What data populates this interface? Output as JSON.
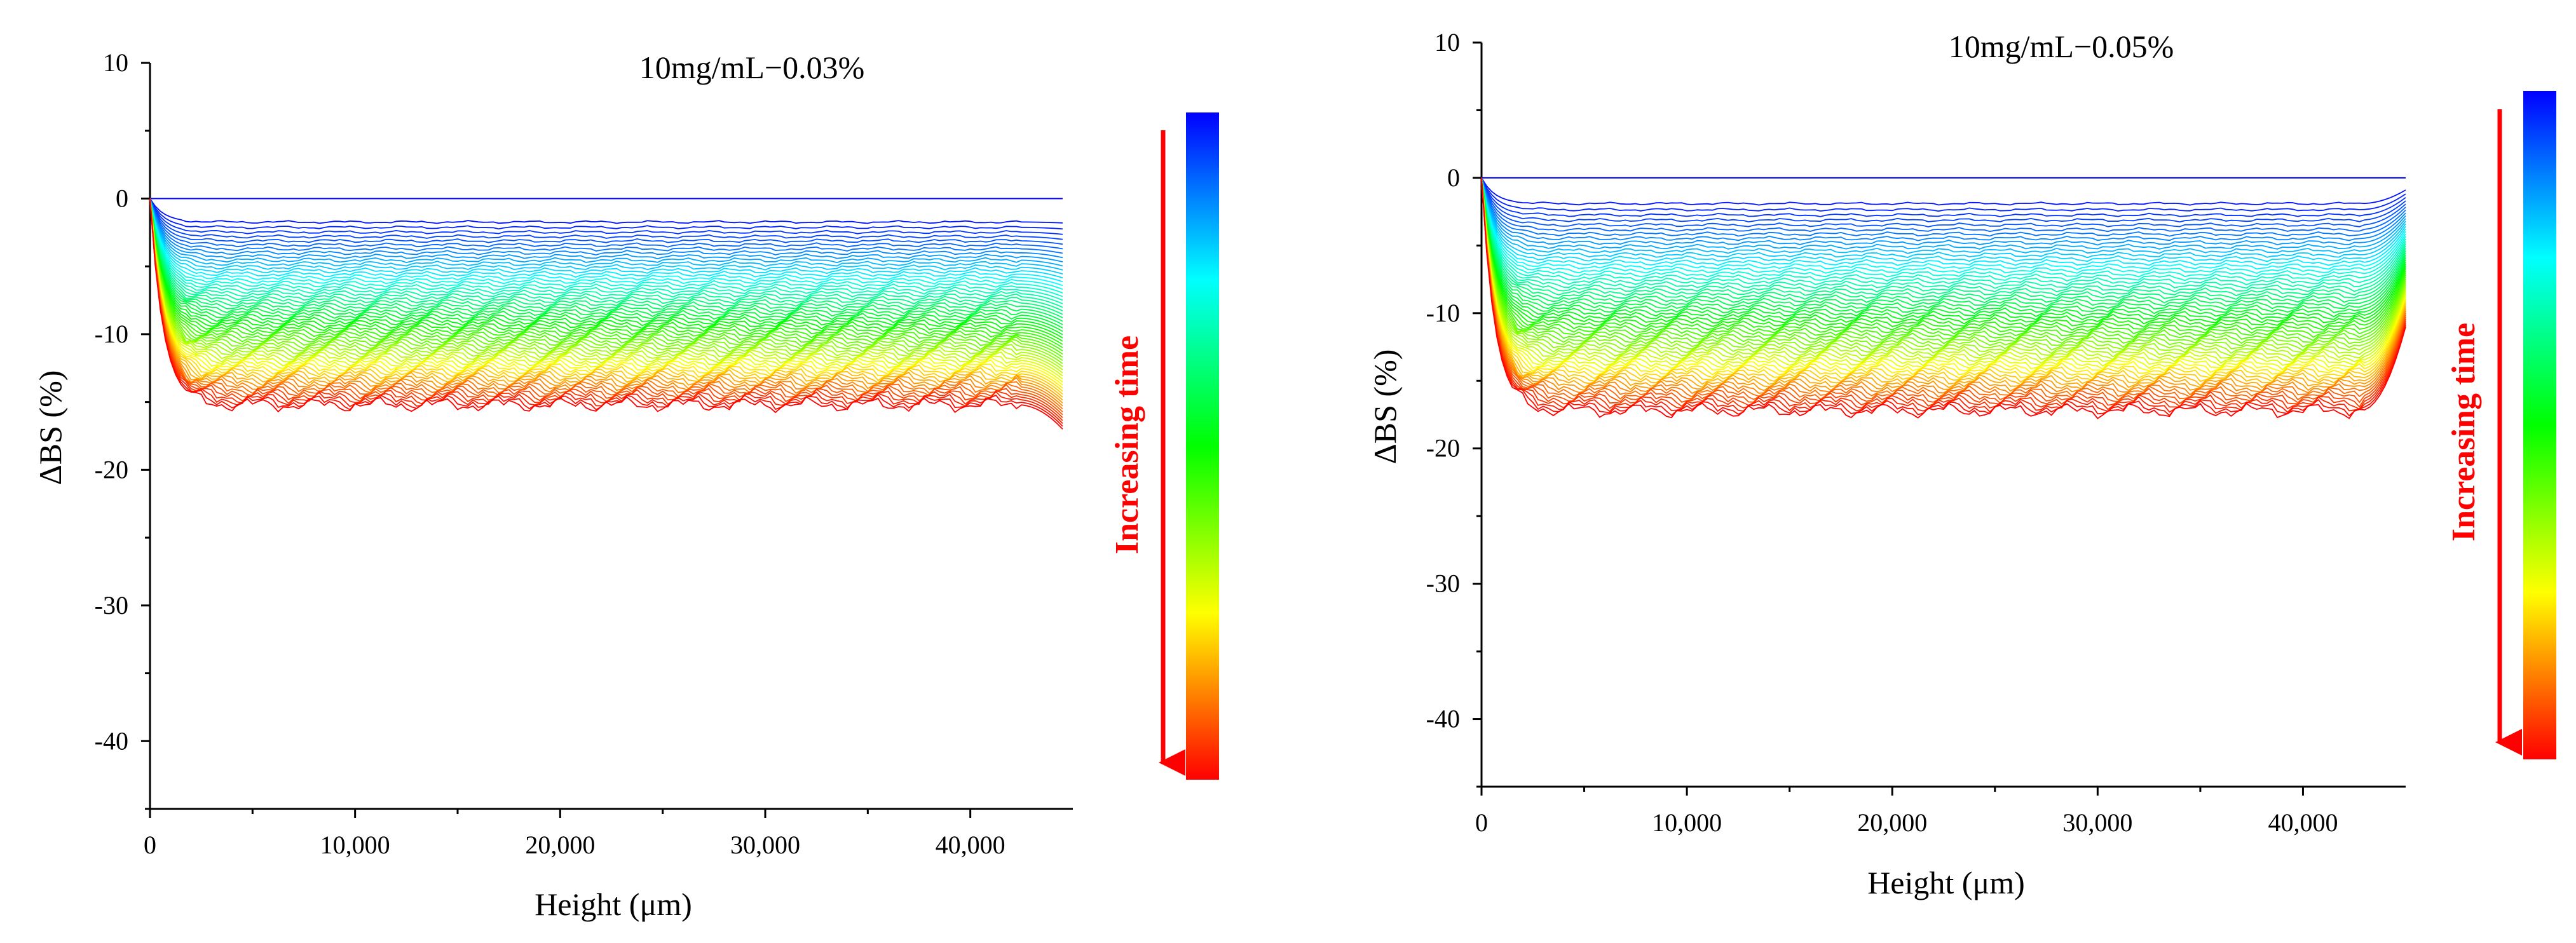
{
  "chart_data": [
    {
      "type": "line",
      "title": "10mg/mL−0.03%",
      "xlabel": "Height (μm)",
      "ylabel": "ΔBS (%)",
      "xlim": [
        0,
        45000
      ],
      "ylim": [
        -45,
        10
      ],
      "xticks": [
        0,
        10000,
        20000,
        30000,
        40000
      ],
      "xtick_labels": [
        "0",
        "10,000",
        "20,000",
        "30,000",
        "40,000"
      ],
      "yticks": [
        10,
        0,
        -10,
        -20,
        -30,
        -40
      ],
      "ytick_labels": [
        "10",
        "0",
        "-10",
        "-20",
        "-30",
        "-40"
      ],
      "x_end": 44500,
      "n_curves": 60,
      "plateau_first": -1.2,
      "plateau_last": -15.2,
      "right_end_first": -1.2,
      "right_end_last": -17.0,
      "colorbar_label": "Increasing time",
      "colormap": [
        "#0000ff",
        "#00ffff",
        "#00ff00",
        "#ffff00",
        "#ff0000"
      ]
    },
    {
      "type": "line",
      "title": "10mg/mL−0.05%",
      "xlabel": "Height (μm)",
      "ylabel": "ΔBS (%)",
      "xlim": [
        0,
        45000
      ],
      "ylim": [
        -45,
        10
      ],
      "xticks": [
        0,
        10000,
        20000,
        30000,
        40000
      ],
      "xtick_labels": [
        "0",
        "10,000",
        "20,000",
        "30,000",
        "40,000"
      ],
      "yticks": [
        10,
        0,
        -10,
        -20,
        -30,
        -40
      ],
      "ytick_labels": [
        "10",
        "0",
        "-10",
        "-20",
        "-30",
        "-40"
      ],
      "x_end": 45000,
      "n_curves": 60,
      "plateau_first": -1.3,
      "plateau_last": -17.2,
      "right_end_first": -0.5,
      "right_end_last": -11.0,
      "colorbar_label": "Increasing time",
      "colormap": [
        "#0000ff",
        "#00ffff",
        "#00ff00",
        "#ffff00",
        "#ff0000"
      ]
    }
  ]
}
